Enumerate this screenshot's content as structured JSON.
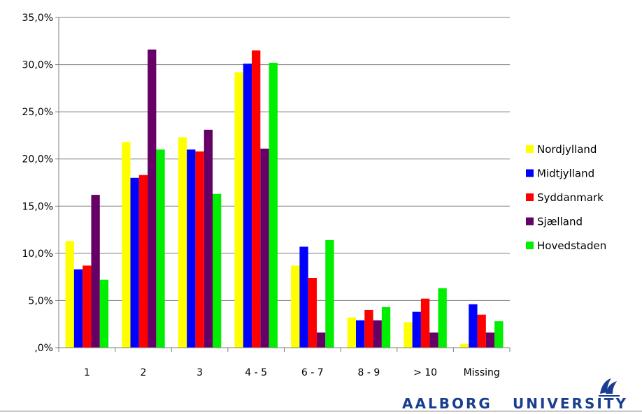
{
  "chart_data": {
    "type": "bar",
    "categories": [
      "1",
      "2",
      "3",
      "4 - 5",
      "6 - 7",
      "8 - 9",
      "> 10",
      "Missing"
    ],
    "series": [
      {
        "name": "Nordjylland",
        "color": "#ffff00",
        "values": [
          11.3,
          21.8,
          22.3,
          29.2,
          8.7,
          3.2,
          2.7,
          0.4
        ]
      },
      {
        "name": "Midtjylland",
        "color": "#0000ff",
        "values": [
          8.3,
          18.0,
          21.0,
          30.1,
          10.7,
          2.9,
          3.8,
          4.6
        ]
      },
      {
        "name": "Syddanmark",
        "color": "#ff0000",
        "values": [
          8.7,
          18.3,
          20.8,
          31.5,
          7.4,
          4.0,
          5.2,
          3.5
        ]
      },
      {
        "name": "Sjælland",
        "color": "#660066",
        "values": [
          16.2,
          31.6,
          23.1,
          21.1,
          1.6,
          2.9,
          1.6,
          1.6
        ]
      },
      {
        "name": "Hovedstaden",
        "color": "#00ee00",
        "values": [
          7.2,
          21.0,
          16.3,
          30.2,
          11.4,
          4.3,
          6.3,
          2.8
        ]
      }
    ],
    "ylim": [
      0,
      35
    ],
    "y_ticks": [
      ",0%",
      "5,0%",
      "10,0%",
      "15,0%",
      "20,0%",
      "25,0%",
      "30,0%",
      "35,0%"
    ],
    "grid": true,
    "legend_position": "right",
    "title": "",
    "xlabel": "",
    "ylabel": ""
  },
  "logo": {
    "text_left": "AALBORG",
    "text_right": "UNIVERSITY",
    "color": "#1a3d8f"
  }
}
